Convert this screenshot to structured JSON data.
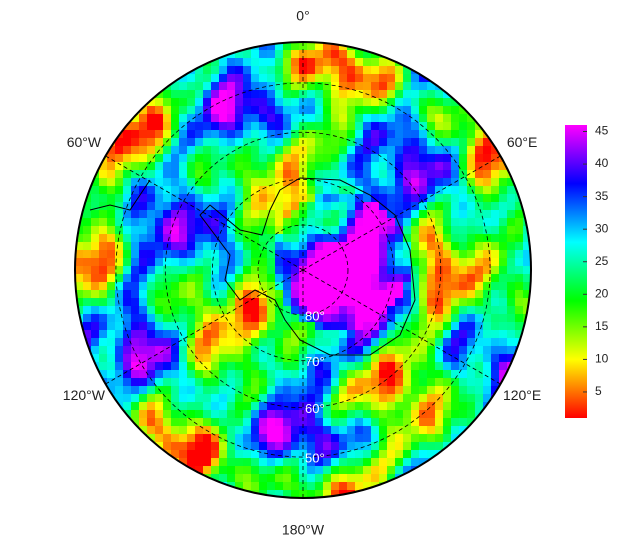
{
  "map": {
    "longitude_labels": [
      "0°",
      "60°E",
      "120°E",
      "180°W",
      "120°W",
      "60°W"
    ],
    "latitude_labels": [
      "80°",
      "70°",
      "60°",
      "50°"
    ],
    "colorbar": {
      "range": [
        1,
        46
      ],
      "ticks": [
        5,
        10,
        15,
        20,
        25,
        30,
        35,
        40,
        45
      ]
    }
  }
}
